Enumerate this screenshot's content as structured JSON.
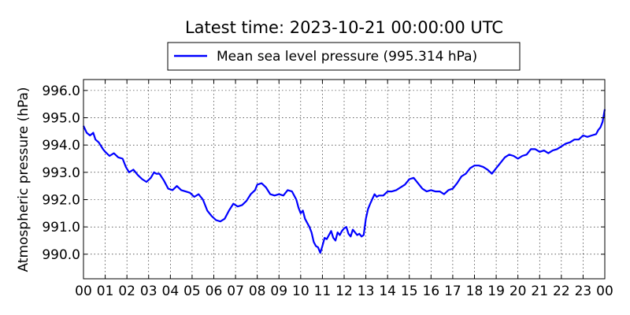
{
  "chart_data": {
    "type": "line",
    "title": "Latest time: 2023-10-21 00:00:00 UTC",
    "xlabel": "",
    "ylabel": "Atmospheric pressure (hPa)",
    "xlim": [
      0,
      24
    ],
    "ylim": [
      989.1,
      996.4
    ],
    "grid": true,
    "legend_position": "top-center",
    "x_ticks": [
      {
        "value": 0,
        "label": "00"
      },
      {
        "value": 1,
        "label": "01"
      },
      {
        "value": 2,
        "label": "02"
      },
      {
        "value": 3,
        "label": "03"
      },
      {
        "value": 4,
        "label": "04"
      },
      {
        "value": 5,
        "label": "05"
      },
      {
        "value": 6,
        "label": "06"
      },
      {
        "value": 7,
        "label": "07"
      },
      {
        "value": 8,
        "label": "08"
      },
      {
        "value": 9,
        "label": "09"
      },
      {
        "value": 10,
        "label": "10"
      },
      {
        "value": 11,
        "label": "11"
      },
      {
        "value": 12,
        "label": "12"
      },
      {
        "value": 13,
        "label": "13"
      },
      {
        "value": 14,
        "label": "14"
      },
      {
        "value": 15,
        "label": "15"
      },
      {
        "value": 16,
        "label": "16"
      },
      {
        "value": 17,
        "label": "17"
      },
      {
        "value": 18,
        "label": "18"
      },
      {
        "value": 19,
        "label": "19"
      },
      {
        "value": 20,
        "label": "20"
      },
      {
        "value": 21,
        "label": "21"
      },
      {
        "value": 22,
        "label": "22"
      },
      {
        "value": 23,
        "label": "23"
      },
      {
        "value": 24,
        "label": "00"
      }
    ],
    "y_ticks": [
      {
        "value": 990.0,
        "label": "990.0"
      },
      {
        "value": 991.0,
        "label": "991.0"
      },
      {
        "value": 992.0,
        "label": "992.0"
      },
      {
        "value": 993.0,
        "label": "993.0"
      },
      {
        "value": 994.0,
        "label": "994.0"
      },
      {
        "value": 995.0,
        "label": "995.0"
      },
      {
        "value": 996.0,
        "label": "996.0"
      }
    ],
    "series": [
      {
        "name": "Mean sea level pressure (995.314 hPa)",
        "color": "#0000ff",
        "x": [
          0,
          0.15,
          0.3,
          0.45,
          0.55,
          0.7,
          0.9,
          1.0,
          1.2,
          1.4,
          1.6,
          1.8,
          1.95,
          2.1,
          2.3,
          2.5,
          2.7,
          2.9,
          3.1,
          3.25,
          3.35,
          3.5,
          3.7,
          3.9,
          4.1,
          4.3,
          4.5,
          4.7,
          4.9,
          5.1,
          5.3,
          5.5,
          5.7,
          5.9,
          6.1,
          6.3,
          6.5,
          6.7,
          6.9,
          7.1,
          7.3,
          7.5,
          7.7,
          7.9,
          8.0,
          8.2,
          8.4,
          8.6,
          8.8,
          9.0,
          9.2,
          9.4,
          9.6,
          9.8,
          9.9,
          10.0,
          10.1,
          10.2,
          10.4,
          10.5,
          10.6,
          10.7,
          10.8,
          10.9,
          11.0,
          11.1,
          11.2,
          11.3,
          11.4,
          11.5,
          11.6,
          11.7,
          11.8,
          11.9,
          12.0,
          12.1,
          12.2,
          12.3,
          12.4,
          12.5,
          12.6,
          12.7,
          12.8,
          12.9,
          13.0,
          13.1,
          13.2,
          13.4,
          13.5,
          13.6,
          13.8,
          14.0,
          14.2,
          14.4,
          14.6,
          14.8,
          15.0,
          15.2,
          15.4,
          15.6,
          15.8,
          16.0,
          16.2,
          16.4,
          16.6,
          16.8,
          17.0,
          17.2,
          17.4,
          17.6,
          17.8,
          18.0,
          18.2,
          18.4,
          18.6,
          18.8,
          19.0,
          19.2,
          19.4,
          19.6,
          19.8,
          20.0,
          20.2,
          20.4,
          20.6,
          20.8,
          21.0,
          21.2,
          21.4,
          21.6,
          21.8,
          22.0,
          22.2,
          22.4,
          22.6,
          22.8,
          23.0,
          23.2,
          23.4,
          23.6,
          23.7,
          23.8,
          23.9,
          24.0
        ],
        "y": [
          994.7,
          994.45,
          994.35,
          994.45,
          994.2,
          994.1,
          993.85,
          993.75,
          993.6,
          993.7,
          993.55,
          993.5,
          993.2,
          993.0,
          993.1,
          992.9,
          992.75,
          992.65,
          992.8,
          993.0,
          992.95,
          992.95,
          992.7,
          992.4,
          992.35,
          992.5,
          992.35,
          992.3,
          992.25,
          992.1,
          992.2,
          992.0,
          991.6,
          991.4,
          991.25,
          991.2,
          991.3,
          991.6,
          991.85,
          991.75,
          991.8,
          991.95,
          992.2,
          992.35,
          992.55,
          992.6,
          992.45,
          992.2,
          992.15,
          992.2,
          992.15,
          992.35,
          992.3,
          992.0,
          991.7,
          991.5,
          991.6,
          991.3,
          991.0,
          990.8,
          990.45,
          990.3,
          990.25,
          990.05,
          990.3,
          990.6,
          990.55,
          990.7,
          990.85,
          990.6,
          990.5,
          990.8,
          990.7,
          990.85,
          990.95,
          991.0,
          990.75,
          990.65,
          990.9,
          990.8,
          990.7,
          990.75,
          990.65,
          990.7,
          991.3,
          991.65,
          991.85,
          992.2,
          992.1,
          992.15,
          992.15,
          992.3,
          992.3,
          992.35,
          992.45,
          992.55,
          992.75,
          992.8,
          992.6,
          992.4,
          992.3,
          992.35,
          992.3,
          992.3,
          992.2,
          992.35,
          992.4,
          992.6,
          992.85,
          992.95,
          993.15,
          993.25,
          993.25,
          993.2,
          993.1,
          992.95,
          993.15,
          993.35,
          993.55,
          993.65,
          993.6,
          993.5,
          993.6,
          993.65,
          993.85,
          993.85,
          993.75,
          993.8,
          993.7,
          993.8,
          993.85,
          993.95,
          994.05,
          994.1,
          994.2,
          994.2,
          994.35,
          994.3,
          994.35,
          994.4,
          994.55,
          994.65,
          994.85,
          995.31
        ]
      }
    ]
  }
}
